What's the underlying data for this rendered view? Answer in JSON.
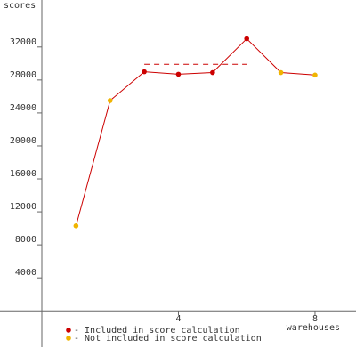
{
  "chart_data": {
    "type": "line",
    "y_label": "scores",
    "x_label": "warehouses",
    "x": [
      1,
      2,
      3,
      4,
      5,
      6,
      7,
      8
    ],
    "values": [
      10300,
      25500,
      29000,
      28700,
      28900,
      33000,
      28900,
      28600
    ],
    "line_color": "#cc0000",
    "point_groups": [
      1,
      1,
      0,
      0,
      0,
      0,
      1,
      1
    ],
    "legend": [
      {
        "label": "- Included in score calculation",
        "color": "#cc0000"
      },
      {
        "label": "- Not included in score calculation",
        "color": "#f0b400"
      }
    ],
    "reference_line": {
      "from_x": 3,
      "to_x": 6,
      "value": 29900,
      "color": "#cc0000"
    },
    "xlim": [
      0,
      9.2
    ],
    "ylim": [
      -4400,
      37700
    ],
    "xticks": [
      4,
      8
    ],
    "yticks": [
      4000,
      8000,
      12000,
      16000,
      20000,
      24000,
      28000,
      32000
    ]
  }
}
